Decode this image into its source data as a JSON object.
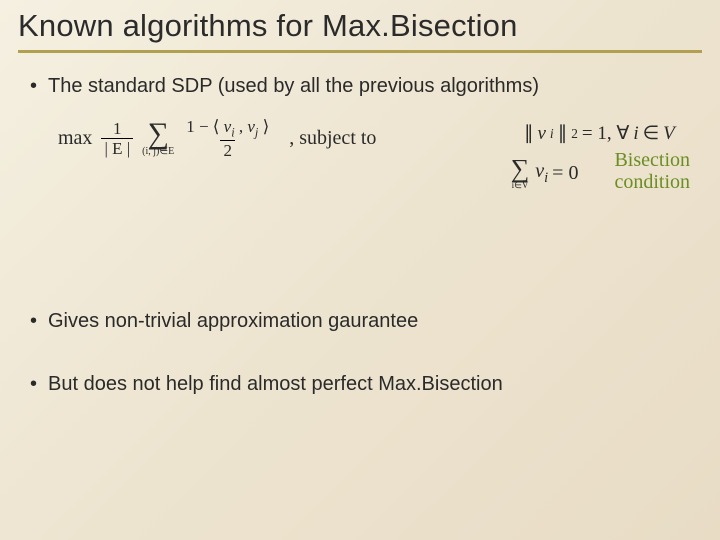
{
  "title": "Known algorithms for Max.Bisection",
  "bullet1": "The standard SDP (used by all the previous algorithms)",
  "formula": {
    "max_word": "max",
    "one": "1",
    "E_denom": "| E |",
    "sum_sub": "(i, j)∈E",
    "top_num": "1 − ⟨ vᵢ , vⱼ ⟩",
    "two": "2",
    "subject_to": ", subject to"
  },
  "constraints": {
    "norm": "∥ vᵢ ∥² = 1, ∀i ∈ V",
    "sum_sub": "i∈V",
    "sum_body": "vᵢ",
    "equals_zero": " = 0",
    "bisection_label_l1": "Bisection",
    "bisection_label_l2": "condition"
  },
  "bullet2": "Gives non-trivial approximation gaurantee",
  "bullet3": "But does not help find almost perfect Max.Bisection",
  "colors": {
    "underline": "#b0a050",
    "bisection_text": "#6b8e23",
    "bg_start": "#f5f0e1",
    "bg_end": "#e8dcc5"
  }
}
